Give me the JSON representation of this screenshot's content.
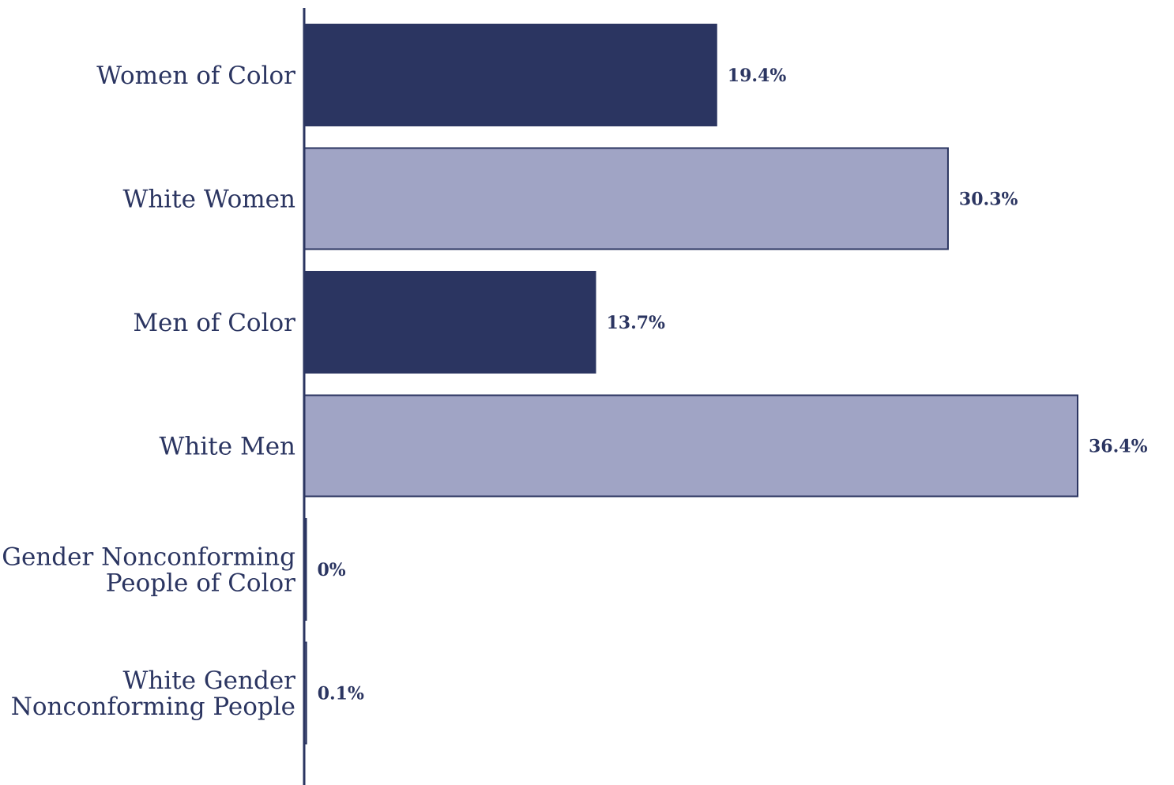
{
  "chart_data": {
    "type": "bar",
    "orientation": "horizontal",
    "categories": [
      [
        "Women of Color"
      ],
      [
        "White Women"
      ],
      [
        "Men of Color"
      ],
      [
        "White Men"
      ],
      [
        "Gender Nonconforming",
        "People of Color"
      ],
      [
        "White Gender",
        "Nonconforming People"
      ]
    ],
    "values": [
      19.4,
      30.3,
      13.7,
      36.4,
      0,
      0.1
    ],
    "value_labels": [
      "19.4%",
      "30.3%",
      "13.7%",
      "36.4%",
      "0%",
      "0.1%"
    ],
    "bar_colors": [
      "#2b3561",
      "#a0a4c5",
      "#2b3561",
      "#a0a4c5",
      "#2b3561",
      "#a0a4c5"
    ],
    "title": "",
    "xlabel": "",
    "ylabel": "",
    "xlim": [
      0,
      36.4
    ],
    "grid": false,
    "legend": "none"
  },
  "colors": {
    "axis": "#2b3561",
    "dark_bar": "#2b3561",
    "light_bar": "#a0a4c5",
    "bar_outline": "#2b3561",
    "text": "#2b3561"
  }
}
